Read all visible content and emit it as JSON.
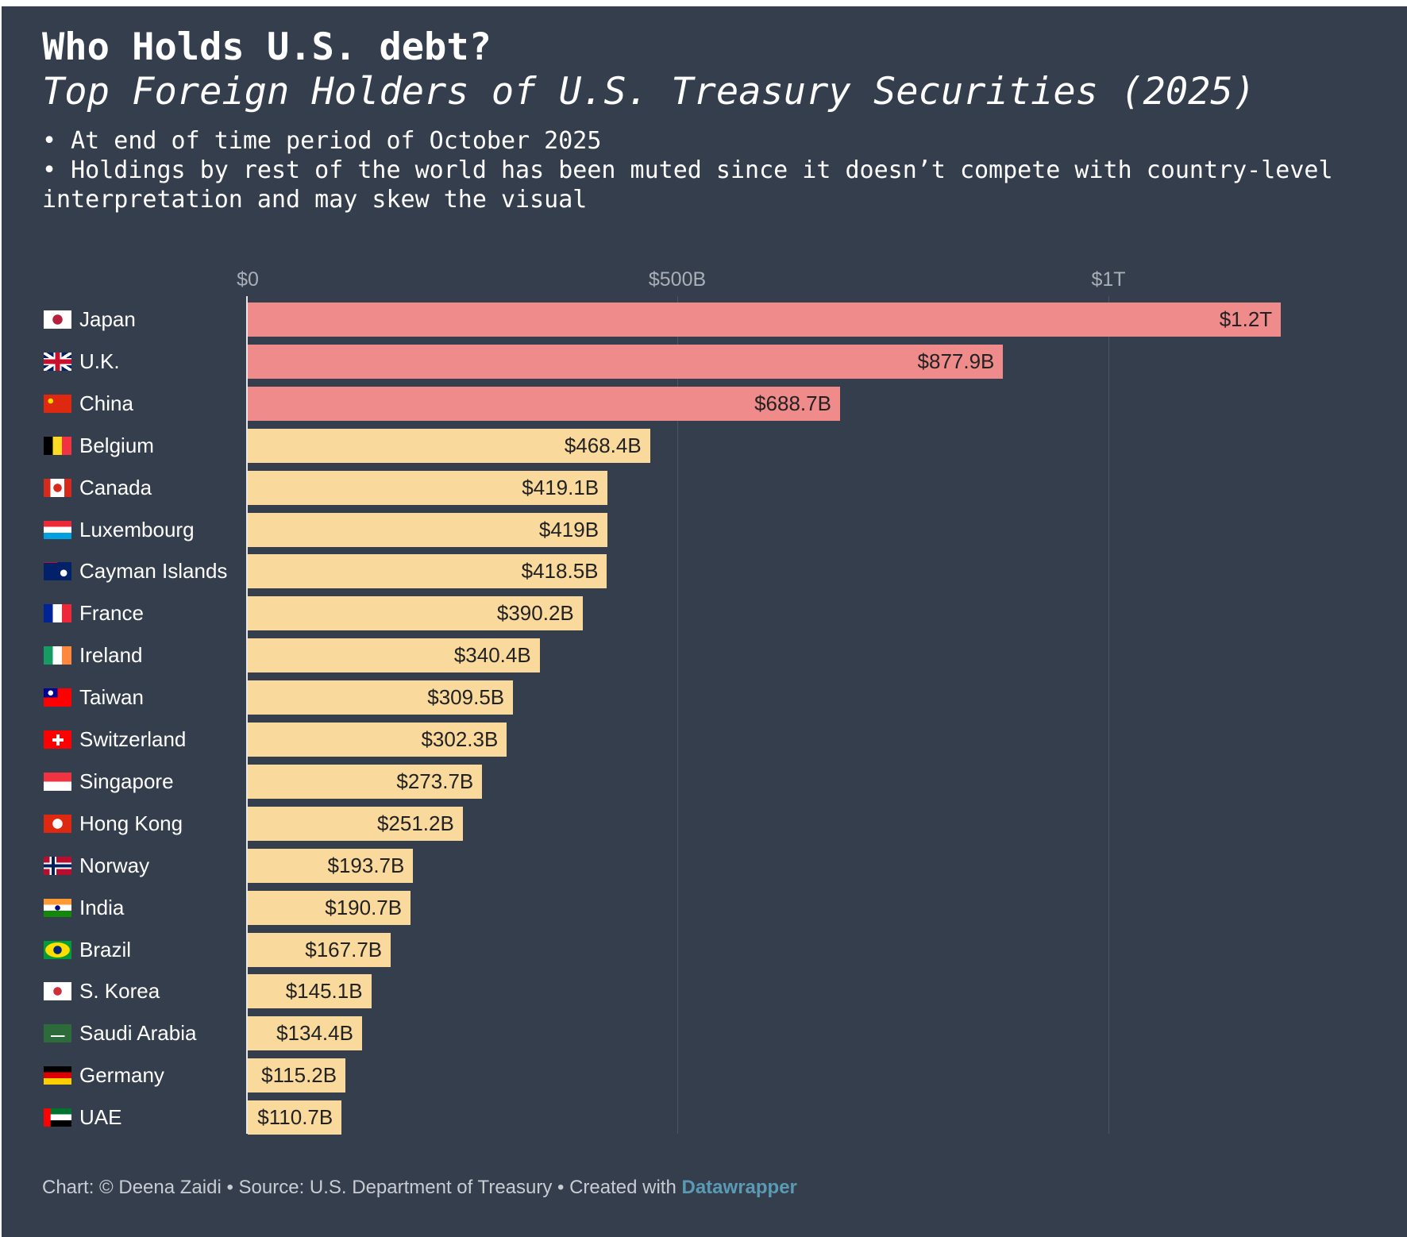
{
  "header": {
    "title": "Who Holds U.S. debt?",
    "subtitle": "Top Foreign Holders of U.S. Treasury Securities (2025)",
    "notes": [
      "• At end of time period of October 2025",
      "• Holdings by rest of the world has been muted since it doesn’t compete with country-level",
      "interpretation and may skew the visual"
    ]
  },
  "footer": {
    "text": "Chart: © Deena Zaidi • Source: U.S. Department of Treasury • Created with ",
    "link": "Datawrapper"
  },
  "colors": {
    "background": "#353e4d",
    "highlight": "#ef8b8a",
    "base": "#f9d99c",
    "link": "#5a9ab4"
  },
  "chart_data": {
    "type": "bar",
    "orientation": "horizontal",
    "xlim": [
      0,
      1200
    ],
    "units": "billions USD",
    "grid": true,
    "axis_ticks": [
      {
        "value": 0,
        "label": "$0"
      },
      {
        "value": 500,
        "label": "$500B"
      },
      {
        "value": 1000,
        "label": "$1T"
      }
    ],
    "categories": [
      "Japan",
      "U.K.",
      "China",
      "Belgium",
      "Canada",
      "Luxembourg",
      "Cayman Islands",
      "France",
      "Ireland",
      "Taiwan",
      "Switzerland",
      "Singapore",
      "Hong Kong",
      "Norway",
      "India",
      "Brazil",
      "S. Korea",
      "Saudi Arabia",
      "Germany",
      "UAE"
    ],
    "values": [
      1200,
      877.9,
      688.7,
      468.4,
      419.1,
      419.0,
      418.5,
      390.2,
      340.4,
      309.5,
      302.3,
      273.7,
      251.2,
      193.7,
      190.7,
      167.7,
      145.1,
      134.4,
      115.2,
      110.7
    ],
    "labels": [
      "$1.2T",
      "$877.9B",
      "$688.7B",
      "$468.4B",
      "$419.1B",
      "$419B",
      "$418.5B",
      "$390.2B",
      "$340.4B",
      "$309.5B",
      "$302.3B",
      "$273.7B",
      "$251.2B",
      "$193.7B",
      "$190.7B",
      "$167.7B",
      "$145.1B",
      "$134.4B",
      "$115.2B",
      "$110.7B"
    ],
    "highlighted": [
      true,
      true,
      true,
      false,
      false,
      false,
      false,
      false,
      false,
      false,
      false,
      false,
      false,
      false,
      false,
      false,
      false,
      false,
      false,
      false
    ],
    "flags": [
      "flag-japan",
      "flag-uk",
      "flag-china",
      "flag-belgium",
      "flag-canada",
      "flag-luxembourg",
      "flag-cayman-islands",
      "flag-france",
      "flag-ireland",
      "flag-taiwan",
      "flag-switzerland",
      "flag-singapore",
      "flag-hong-kong",
      "flag-norway",
      "flag-india",
      "flag-brazil",
      "flag-south-korea",
      "flag-saudi-arabia",
      "flag-germany",
      "flag-uae"
    ]
  }
}
